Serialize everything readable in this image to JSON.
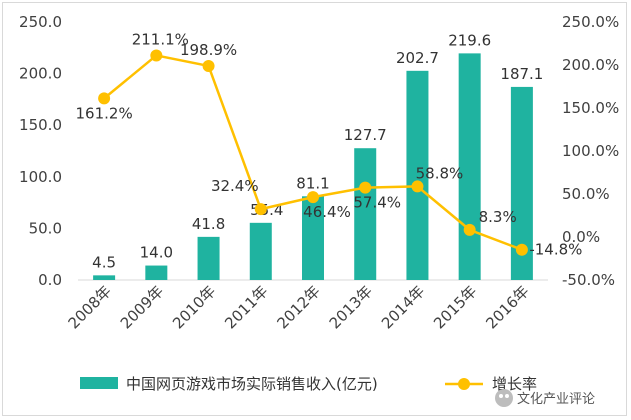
{
  "chart_data": {
    "type": "bar+line",
    "categories": [
      "2008年",
      "2009年",
      "2010年",
      "2011年",
      "2012年",
      "2013年",
      "2014年",
      "2015年",
      "2016年"
    ],
    "series": [
      {
        "name": "中国网页游戏市场实际销售收入(亿元)",
        "type": "bar",
        "axis": "left",
        "color": "#1fb3a0",
        "values": [
          4.5,
          14.0,
          41.8,
          55.4,
          81.1,
          127.7,
          202.7,
          219.6,
          187.1
        ],
        "labels": [
          "4.5",
          "14.0",
          "41.8",
          "55.4",
          "81.1",
          "127.7",
          "202.7",
          "219.6",
          "187.1"
        ]
      },
      {
        "name": "增长率",
        "type": "line",
        "axis": "right",
        "color": "#ffc000",
        "values": [
          161.2,
          211.1,
          198.9,
          32.4,
          46.4,
          57.4,
          58.8,
          8.3,
          -14.8
        ],
        "labels": [
          "161.2%",
          "211.1%",
          "198.9%",
          "32.4%",
          "46.4%",
          "57.4%",
          "58.8%",
          "8.3%",
          "-14.8%"
        ]
      }
    ],
    "y_left": {
      "min": 0,
      "max": 250,
      "ticks": [
        "0.0",
        "50.0",
        "100.0",
        "150.0",
        "200.0",
        "250.0"
      ]
    },
    "y_right": {
      "min": -50,
      "max": 250,
      "ticks": [
        "-50.0%",
        "0.0%",
        "50.0%",
        "100.0%",
        "150.0%",
        "200.0%",
        "250.0%"
      ]
    },
    "legend": [
      "中国网页游戏市场实际销售收入(亿元)",
      "增长率"
    ],
    "legend_position": "bottom"
  },
  "watermark": "文化产业评论"
}
